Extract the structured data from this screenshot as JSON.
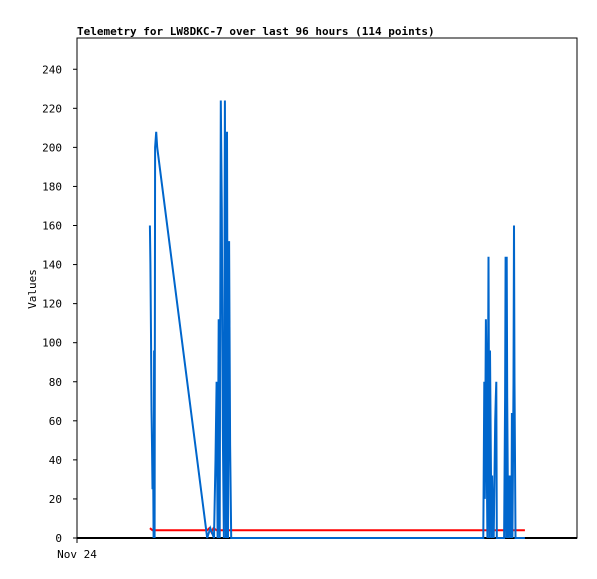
{
  "chart_data": {
    "type": "line",
    "title": "Telemetry for LW8DKC-7 over last 96 hours (114 points)",
    "ylabel": "Values",
    "xlabel": "",
    "x_tick_labels": [
      "Nov 24"
    ],
    "ylim": [
      0,
      256
    ],
    "y_ticks": [
      0,
      20,
      40,
      60,
      80,
      100,
      120,
      140,
      160,
      180,
      200,
      220,
      240
    ],
    "x_range_hours": [
      0,
      96
    ],
    "grid": false,
    "colors": {
      "series_blue": "#0066cc",
      "series_red": "#ff0000",
      "series_black": "#000000"
    },
    "series": [
      {
        "color": "#0066cc",
        "points": [
          [
            14.0,
            160
          ],
          [
            14.1,
            141
          ],
          [
            14.2,
            104
          ],
          [
            14.3,
            66
          ],
          [
            14.4,
            48
          ],
          [
            14.5,
            25
          ],
          [
            14.6,
            48
          ],
          [
            14.7,
            0
          ],
          [
            14.8,
            96
          ],
          [
            14.9,
            0
          ],
          [
            15.0,
            200
          ],
          [
            15.2,
            208
          ],
          [
            15.4,
            200
          ],
          [
            25.0,
            0
          ],
          [
            25.6,
            5
          ],
          [
            26.3,
            0
          ],
          [
            26.6,
            40
          ],
          [
            26.8,
            80
          ],
          [
            27.0,
            0
          ],
          [
            27.2,
            112
          ],
          [
            27.4,
            0
          ],
          [
            27.6,
            224
          ],
          [
            27.8,
            168
          ],
          [
            28.0,
            56
          ],
          [
            28.2,
            0
          ],
          [
            28.4,
            224
          ],
          [
            28.6,
            0
          ],
          [
            28.8,
            208
          ],
          [
            29.0,
            0
          ],
          [
            29.2,
            152
          ],
          [
            29.4,
            48
          ],
          [
            29.6,
            0
          ],
          [
            30.0,
            0
          ],
          [
            78.0,
            0
          ],
          [
            78.1,
            40
          ],
          [
            78.2,
            80
          ],
          [
            78.3,
            20
          ],
          [
            78.4,
            60
          ],
          [
            78.5,
            112
          ],
          [
            78.6,
            88
          ],
          [
            78.7,
            30
          ],
          [
            78.8,
            0
          ],
          [
            79.0,
            144
          ],
          [
            79.1,
            72
          ],
          [
            79.2,
            0
          ],
          [
            79.3,
            96
          ],
          [
            79.4,
            64
          ],
          [
            79.5,
            24
          ],
          [
            79.6,
            0
          ],
          [
            79.7,
            32
          ],
          [
            79.8,
            16
          ],
          [
            80.0,
            0
          ],
          [
            80.2,
            40
          ],
          [
            80.3,
            60
          ],
          [
            80.4,
            72
          ],
          [
            80.5,
            80
          ],
          [
            80.6,
            0
          ],
          [
            81.0,
            0
          ],
          [
            82.0,
            0
          ],
          [
            82.2,
            72
          ],
          [
            82.3,
            144
          ],
          [
            82.4,
            0
          ],
          [
            82.5,
            144
          ],
          [
            82.6,
            72
          ],
          [
            82.8,
            0
          ],
          [
            83.0,
            32
          ],
          [
            83.2,
            0
          ],
          [
            83.3,
            32
          ],
          [
            83.4,
            0
          ],
          [
            83.5,
            64
          ],
          [
            83.6,
            0
          ],
          [
            83.7,
            32
          ],
          [
            83.8,
            80
          ],
          [
            83.9,
            160
          ],
          [
            84.0,
            80
          ],
          [
            84.2,
            0
          ],
          [
            86.0,
            0
          ]
        ]
      },
      {
        "color": "#ff0000",
        "points": [
          [
            14.0,
            5
          ],
          [
            14.5,
            4
          ],
          [
            16.0,
            4
          ],
          [
            17.0,
            4
          ],
          [
            18.0,
            4
          ],
          [
            20.0,
            4
          ],
          [
            22.0,
            4
          ],
          [
            24.0,
            4
          ],
          [
            25.0,
            4
          ],
          [
            25.4,
            5
          ],
          [
            25.8,
            3
          ],
          [
            26.2,
            5
          ],
          [
            26.8,
            4
          ],
          [
            30.0,
            4
          ],
          [
            40.0,
            4
          ],
          [
            50.0,
            4
          ],
          [
            60.0,
            4
          ],
          [
            70.0,
            4
          ],
          [
            80.0,
            4
          ],
          [
            86.0,
            4
          ]
        ]
      },
      {
        "color": "#000000",
        "points": [
          [
            0,
            0
          ],
          [
            14.0,
            0
          ],
          [
            86.0,
            0
          ],
          [
            96,
            0
          ]
        ]
      }
    ]
  }
}
